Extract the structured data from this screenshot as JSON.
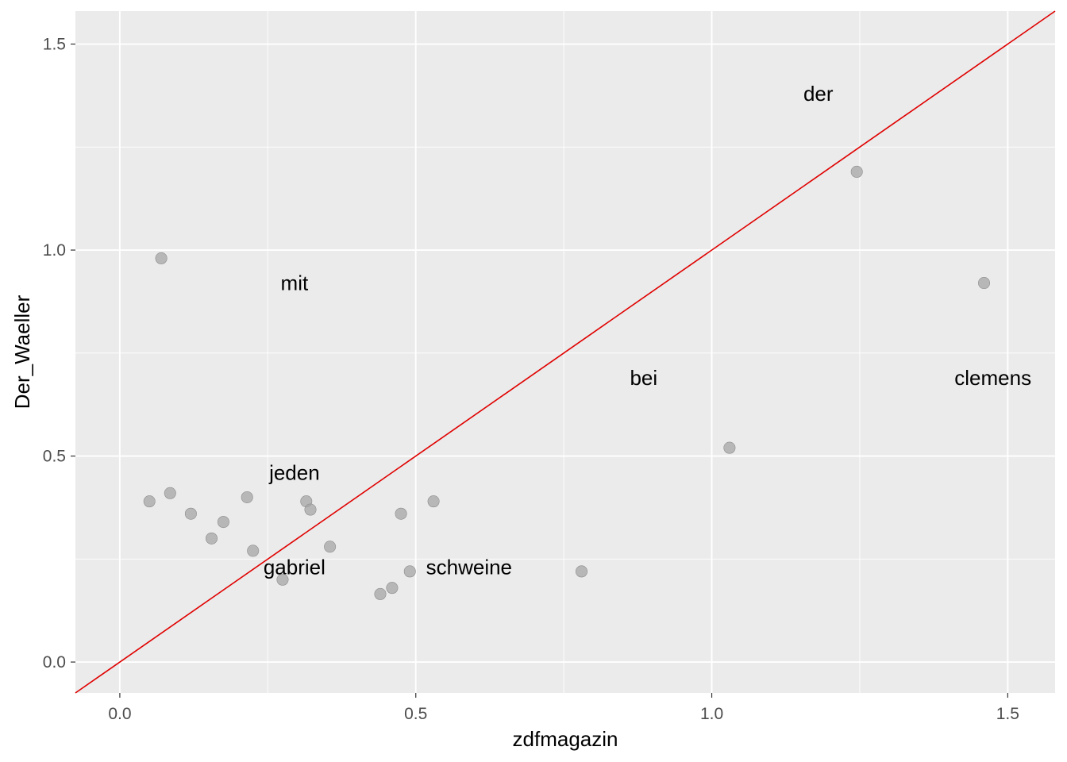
{
  "chart_data": {
    "type": "scatter",
    "title": "",
    "xlabel": "zdfmagazin",
    "ylabel": "Der_Waeller",
    "xlim": [
      -0.075,
      1.58
    ],
    "ylim": [
      -0.075,
      1.58
    ],
    "x_ticks": [
      0.0,
      0.5,
      1.0,
      1.5
    ],
    "y_ticks": [
      0.0,
      0.5,
      1.0,
      1.5
    ],
    "x_tick_labels": [
      "0.0",
      "0.5",
      "1.0",
      "1.5"
    ],
    "y_tick_labels": [
      "0.0",
      "0.5",
      "1.0",
      "1.5"
    ],
    "grid": true,
    "background": "#ebebeb",
    "grid_color": "#ffffff",
    "point_color": "#a6a6a6",
    "reference_line": {
      "slope": 1,
      "intercept": 0,
      "color": "#e00000"
    },
    "points": [
      {
        "x": 0.07,
        "y": 0.98
      },
      {
        "x": 0.05,
        "y": 0.39
      },
      {
        "x": 0.085,
        "y": 0.41
      },
      {
        "x": 0.12,
        "y": 0.36
      },
      {
        "x": 0.155,
        "y": 0.3
      },
      {
        "x": 0.175,
        "y": 0.34
      },
      {
        "x": 0.215,
        "y": 0.4
      },
      {
        "x": 0.225,
        "y": 0.27
      },
      {
        "x": 0.275,
        "y": 0.2
      },
      {
        "x": 0.315,
        "y": 0.39
      },
      {
        "x": 0.322,
        "y": 0.37
      },
      {
        "x": 0.355,
        "y": 0.28
      },
      {
        "x": 0.44,
        "y": 0.165
      },
      {
        "x": 0.46,
        "y": 0.18
      },
      {
        "x": 0.475,
        "y": 0.36
      },
      {
        "x": 0.49,
        "y": 0.22
      },
      {
        "x": 0.53,
        "y": 0.39
      },
      {
        "x": 0.78,
        "y": 0.22
      },
      {
        "x": 1.03,
        "y": 0.52
      },
      {
        "x": 1.245,
        "y": 1.19
      },
      {
        "x": 1.46,
        "y": 0.92
      }
    ],
    "labels": [
      {
        "text": "der",
        "x": 1.18,
        "y": 1.38
      },
      {
        "text": "mit",
        "x": 0.295,
        "y": 0.92
      },
      {
        "text": "bei",
        "x": 0.885,
        "y": 0.69
      },
      {
        "text": "clemens",
        "x": 1.475,
        "y": 0.69
      },
      {
        "text": "jeden",
        "x": 0.295,
        "y": 0.46
      },
      {
        "text": "gabriel",
        "x": 0.295,
        "y": 0.23
      },
      {
        "text": "schweine",
        "x": 0.59,
        "y": 0.23
      }
    ]
  }
}
